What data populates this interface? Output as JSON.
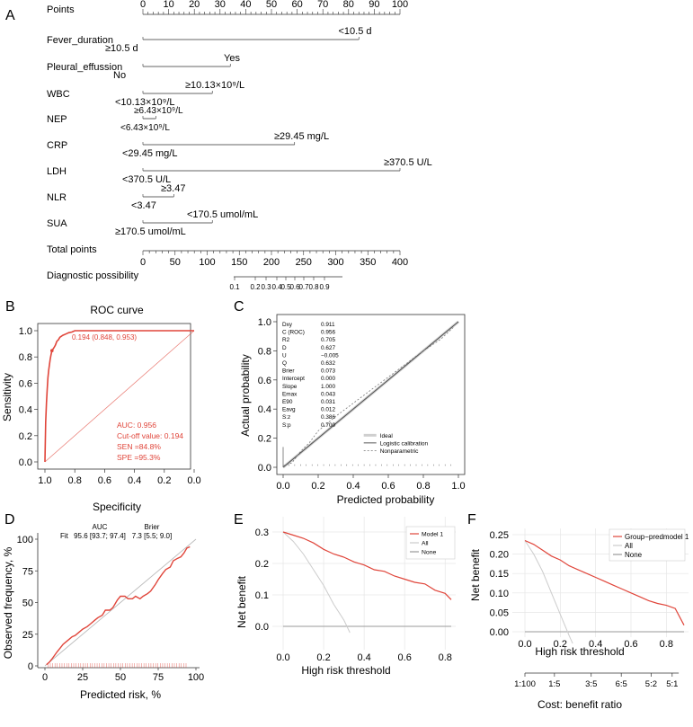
{
  "colors": {
    "accent": "#e0453a",
    "axis": "#333333",
    "grey": "#999999",
    "light": "#dddddd",
    "plot_bg": "#ffffff"
  },
  "panels": {
    "A": {
      "letter": "A",
      "rows": [
        {
          "label": "Points"
        },
        {
          "label": "Fever_duration",
          "text_above": "<10.5 d",
          "text_below": "≥10.5 d"
        },
        {
          "label": "Pleural_effussion",
          "text_above": "Yes",
          "text_below": "No"
        },
        {
          "label": "WBC",
          "text_above": "≥10.13×10⁹/L",
          "text_below": "<10.13×10⁹/L"
        },
        {
          "label": "NEP",
          "text_above": "≥6.43×10⁹/L",
          "text_below": "<6.43×10⁹/L"
        },
        {
          "label": "CRP",
          "text_above": "≥29.45 mg/L",
          "text_below": "<29.45 mg/L"
        },
        {
          "label": "LDH",
          "text_above": "≥370.5 U/L",
          "text_below": "<370.5 U/L"
        },
        {
          "label": "NLR",
          "text_above": "≥3.47",
          "text_below": "<3.47"
        },
        {
          "label": "SUA",
          "text_above": "<170.5 umol/mL",
          "text_below": "≥170.5 umol/mL"
        },
        {
          "label": "Total points"
        },
        {
          "label": "Diagnostic possibility"
        }
      ],
      "points_ticks": [
        "0",
        "10",
        "20",
        "30",
        "40",
        "50",
        "60",
        "70",
        "80",
        "90",
        "100"
      ],
      "total_ticks": [
        "0",
        "50",
        "100",
        "150",
        "200",
        "250",
        "300",
        "350",
        "400"
      ],
      "prob_ticks": [
        "0.1",
        "0.2",
        "0.3",
        "0.4",
        "0.5",
        "0.6",
        "0.7",
        "0.8",
        "0.9"
      ]
    },
    "B": {
      "letter": "B",
      "title": "ROC curve",
      "xlabel": "Specificity",
      "ylabel": "Sensitivity",
      "xticks": [
        "1.0",
        "0.8",
        "0.6",
        "0.4",
        "0.2",
        "0.0"
      ],
      "yticks": [
        "0.0",
        "0.2",
        "0.4",
        "0.6",
        "0.8",
        "1.0"
      ],
      "point_label": "0.194 (0.848, 0.953)",
      "stats": [
        "AUC: 0.956",
        "Cut-off value: 0.194",
        "SEN =84.8%",
        "SPE =95.3%"
      ]
    },
    "C": {
      "letter": "C",
      "xlabel": "Predicted probability",
      "ylabel": "Actual probability",
      "xticks": [
        "0.0",
        "0.2",
        "0.4",
        "0.6",
        "0.8",
        "1.0"
      ],
      "yticks": [
        "0.0",
        "0.2",
        "0.4",
        "0.6",
        "0.8",
        "1.0"
      ],
      "stats": [
        [
          "Dxy",
          "0.911"
        ],
        [
          "C (ROC)",
          "0.956"
        ],
        [
          "R2",
          "0.705"
        ],
        [
          "D",
          "0.627"
        ],
        [
          "U",
          "−0.005"
        ],
        [
          "Q",
          "0.632"
        ],
        [
          "Brier",
          "0.073"
        ],
        [
          "Intercept",
          "0.000"
        ],
        [
          "Slope",
          "1.000"
        ],
        [
          "Emax",
          "0.043"
        ],
        [
          "E90",
          "0.031"
        ],
        [
          "Eavg",
          "0.012"
        ],
        [
          "S:z",
          "0.386"
        ],
        [
          "S:p",
          "0.700"
        ]
      ],
      "legend": [
        "Ideal",
        "Logistic calibration",
        "Nonparametric"
      ]
    },
    "D": {
      "letter": "D",
      "xlabel": "Predicted risk, %",
      "ylabel": "Observed frequency, %",
      "xticks": [
        "0",
        "25",
        "50",
        "75",
        "100"
      ],
      "yticks": [
        "0",
        "25",
        "50",
        "75",
        "100"
      ],
      "hdr_auc": "AUC",
      "hdr_brier": "Brier",
      "row_label": "Fit",
      "row_auc": "95.6 [93.7; 97.4]",
      "row_brier": "7.3 [5.5; 9.0]"
    },
    "E": {
      "letter": "E",
      "xlabel": "High risk threshold",
      "ylabel": "Net benefit",
      "xticks": [
        "0.0",
        "0.2",
        "0.4",
        "0.6",
        "0.8"
      ],
      "yticks": [
        "0.0",
        "0.1",
        "0.2",
        "0.3"
      ],
      "legend": [
        "Model 1",
        "All",
        "None"
      ]
    },
    "F": {
      "letter": "F",
      "xlabel": "High risk threshold",
      "ylabel": "Net benefit",
      "xlabel2": "Cost: benefit ratio",
      "xticks": [
        "0.0",
        "0.2",
        "0.4",
        "0.6",
        "0.8"
      ],
      "yticks": [
        "0.00",
        "0.05",
        "0.10",
        "0.15",
        "0.20",
        "0.25"
      ],
      "cb_ticks": [
        "1:100",
        "1:5",
        "3:5",
        "6:5",
        "5:2",
        "5:1"
      ],
      "legend": [
        "Group−predmodel 1",
        "All",
        "None"
      ]
    }
  },
  "chart_data": [
    {
      "type": "table",
      "panel": "A",
      "points_axis": [
        0,
        100
      ],
      "total_points_axis": [
        0,
        400
      ],
      "diagnostic_possibility_ticks": [
        0.1,
        0.2,
        0.3,
        0.4,
        0.5,
        0.6,
        0.7,
        0.8,
        0.9
      ],
      "variables": [
        {
          "name": "Fever_duration",
          "points_max": 84
        },
        {
          "name": "Pleural_effussion",
          "points_max": 34
        },
        {
          "name": "WBC",
          "points_max": 27
        },
        {
          "name": "NEP",
          "points_max": 5
        },
        {
          "name": "CRP",
          "points_max": 59
        },
        {
          "name": "LDH",
          "points_max": 100
        },
        {
          "name": "NLR",
          "points_max": 12
        },
        {
          "name": "SUA",
          "points_max": 27
        }
      ]
    },
    {
      "type": "line",
      "panel": "B",
      "xlim": [
        1.0,
        0.0
      ],
      "ylim": [
        0,
        1
      ],
      "series": [
        {
          "x": [
            1.0,
            0.995,
            0.99,
            0.985,
            0.98,
            0.975,
            0.97,
            0.965,
            0.96,
            0.955,
            0.953,
            0.94,
            0.93,
            0.92,
            0.91,
            0.9,
            0.88,
            0.86,
            0.84,
            0.82,
            0.8,
            0.75,
            0.7,
            0.5,
            0.3,
            0.1,
            0.0
          ],
          "y": [
            0.0,
            0.3,
            0.45,
            0.55,
            0.64,
            0.7,
            0.74,
            0.78,
            0.81,
            0.84,
            0.848,
            0.87,
            0.89,
            0.92,
            0.93,
            0.95,
            0.965,
            0.975,
            0.985,
            0.99,
            1.0,
            1.0,
            1.0,
            1.0,
            1.0,
            1.0,
            1.0
          ]
        }
      ],
      "cutoff_point": {
        "x": 0.953,
        "y": 0.848
      }
    },
    {
      "type": "line",
      "panel": "C",
      "xlim": [
        0,
        1
      ],
      "ylim": [
        0,
        1
      ],
      "series": [
        {
          "name": "Ideal",
          "x": [
            0,
            1
          ],
          "y": [
            0,
            1
          ]
        },
        {
          "name": "Logistic calibration",
          "x": [
            0,
            1
          ],
          "y": [
            0,
            1
          ]
        },
        {
          "name": "Nonparametric",
          "x": [
            0.0,
            0.05,
            0.1,
            0.15,
            0.2,
            0.3,
            0.4,
            0.5,
            0.6,
            0.7,
            0.8,
            0.9,
            0.97
          ],
          "y": [
            0.01,
            0.03,
            0.11,
            0.17,
            0.25,
            0.35,
            0.44,
            0.53,
            0.62,
            0.71,
            0.8,
            0.88,
            0.96
          ]
        }
      ]
    },
    {
      "type": "line",
      "panel": "D",
      "xlim": [
        0,
        100
      ],
      "ylim": [
        0,
        100
      ],
      "series": [
        {
          "name": "Fit",
          "x": [
            1,
            3,
            5,
            8,
            10,
            12,
            15,
            18,
            20,
            22,
            25,
            28,
            30,
            33,
            35,
            38,
            40,
            43,
            45,
            48,
            50,
            53,
            55,
            58,
            60,
            63,
            65,
            68,
            70,
            73,
            75,
            78,
            80,
            83,
            85,
            88,
            90,
            92,
            94,
            96
          ],
          "y": [
            1,
            3,
            6,
            11,
            14,
            17,
            20,
            23,
            24,
            26,
            29,
            31,
            33,
            36,
            38,
            40,
            44,
            44,
            46,
            52,
            55,
            55,
            53,
            53,
            55,
            53,
            55,
            57,
            59,
            64,
            68,
            73,
            76,
            78,
            83,
            85,
            86,
            89,
            93,
            94
          ]
        }
      ]
    },
    {
      "type": "line",
      "panel": "E",
      "xlim": [
        0,
        0.85
      ],
      "ylim": [
        -0.02,
        0.31
      ],
      "series": [
        {
          "name": "Model 1",
          "x": [
            0,
            0.05,
            0.1,
            0.15,
            0.2,
            0.25,
            0.3,
            0.35,
            0.4,
            0.45,
            0.5,
            0.55,
            0.6,
            0.65,
            0.7,
            0.75,
            0.8,
            0.83
          ],
          "y": [
            0.3,
            0.29,
            0.28,
            0.265,
            0.245,
            0.23,
            0.22,
            0.205,
            0.195,
            0.18,
            0.175,
            0.16,
            0.15,
            0.14,
            0.135,
            0.115,
            0.105,
            0.085
          ]
        },
        {
          "name": "All",
          "x": [
            0,
            0.05,
            0.1,
            0.15,
            0.2,
            0.25,
            0.3,
            0.33
          ],
          "y": [
            0.3,
            0.27,
            0.23,
            0.18,
            0.13,
            0.07,
            0.02,
            -0.02
          ]
        },
        {
          "name": "None",
          "x": [
            0,
            0.83
          ],
          "y": [
            0,
            0
          ]
        }
      ]
    },
    {
      "type": "line",
      "panel": "F",
      "xlim": [
        -0.05,
        0.93
      ],
      "ylim": [
        -0.03,
        0.25
      ],
      "series": [
        {
          "name": "Group−predmodel 1",
          "x": [
            0,
            0.05,
            0.1,
            0.15,
            0.2,
            0.25,
            0.3,
            0.35,
            0.4,
            0.45,
            0.5,
            0.55,
            0.6,
            0.65,
            0.7,
            0.75,
            0.8,
            0.85,
            0.9
          ],
          "y": [
            0.235,
            0.225,
            0.21,
            0.195,
            0.185,
            0.17,
            0.16,
            0.15,
            0.14,
            0.13,
            0.12,
            0.11,
            0.1,
            0.09,
            0.08,
            0.073,
            0.068,
            0.06,
            0.017
          ]
        },
        {
          "name": "All",
          "x": [
            0,
            0.05,
            0.1,
            0.15,
            0.2,
            0.25,
            0.27
          ],
          "y": [
            0.235,
            0.2,
            0.155,
            0.1,
            0.045,
            -0.01,
            -0.03
          ]
        },
        {
          "name": "None",
          "x": [
            0,
            0.9
          ],
          "y": [
            0,
            0
          ]
        }
      ],
      "cost_benefit_ticks": [
        "1:100",
        "1:5",
        "3:5",
        "6:5",
        "5:2",
        "5:1"
      ]
    }
  ]
}
